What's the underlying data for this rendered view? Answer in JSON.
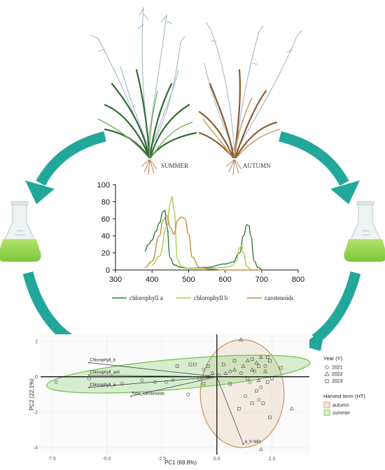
{
  "plants": {
    "summer_label": "SUMMER",
    "autumn_label": "AUTUMN"
  },
  "colors": {
    "arrow": "#22a89a",
    "chlorophyll_a": "#2e7d32",
    "chlorophyll_b": "#aacc55",
    "carotenoids": "#cc8a3a",
    "flask_liquid": "#8fd44a",
    "summer_ellipse": "#6cc24a",
    "autumn_ellipse": "#c9925a"
  },
  "spectrum": {
    "chart_data": {
      "type": "line",
      "xlim": [
        300,
        800
      ],
      "ylim": [
        0,
        100
      ],
      "xticks": [
        300,
        400,
        500,
        600,
        700,
        800
      ],
      "yticks": [
        0,
        20,
        40,
        60,
        80,
        100
      ],
      "series": [
        {
          "name": "chlorophyll a",
          "color": "#2e7d32",
          "x": [
            380,
            390,
            400,
            410,
            420,
            430,
            435,
            440,
            450,
            460,
            480,
            500,
            550,
            600,
            620,
            640,
            650,
            660,
            665,
            670,
            680,
            690,
            700
          ],
          "y": [
            22,
            30,
            35,
            45,
            55,
            68,
            70,
            52,
            14,
            6,
            3,
            2,
            3,
            7,
            9,
            20,
            40,
            53,
            52,
            40,
            10,
            3,
            1
          ]
        },
        {
          "name": "chlorophyll b",
          "color": "#aacc55",
          "x": [
            400,
            420,
            440,
            450,
            455,
            460,
            470,
            480,
            500,
            550,
            600,
            620,
            630,
            640,
            645,
            650,
            660,
            670
          ],
          "y": [
            6,
            16,
            50,
            78,
            86,
            70,
            12,
            4,
            2,
            2,
            3,
            5,
            10,
            26,
            28,
            20,
            4,
            1
          ]
        },
        {
          "name": "carotenoids",
          "color": "#cc8a3a",
          "x": [
            380,
            400,
            420,
            430,
            440,
            450,
            460,
            470,
            480,
            490,
            500,
            510,
            530,
            560,
            600,
            700
          ],
          "y": [
            3,
            10,
            40,
            58,
            64,
            50,
            42,
            58,
            62,
            60,
            42,
            15,
            3,
            1,
            0,
            0
          ]
        }
      ]
    }
  },
  "pca": {
    "chart_data": {
      "type": "scatter",
      "xlabel": "PC1 (69.8%)",
      "ylabel": "PC2 (22.1%)",
      "xlim": [
        -8,
        4.2
      ],
      "ylim": [
        -4.4,
        2.4
      ],
      "xticks": [
        -7.5,
        -5.0,
        -2.5,
        0.0,
        2.5
      ],
      "yticks": [
        2,
        0,
        -2,
        -4
      ],
      "legend_year_title": "Year (Y)",
      "legend_year": [
        {
          "symbol": "circle",
          "label": "2021"
        },
        {
          "symbol": "triangle",
          "label": "2022"
        },
        {
          "symbol": "square",
          "label": "2023"
        }
      ],
      "legend_ht_title": "Harvest term (HT)",
      "legend_ht": [
        {
          "label": "autumn",
          "color": "#c9925a"
        },
        {
          "label": "summer",
          "color": "#6cc24a"
        }
      ],
      "vectors": [
        {
          "label": "Chlorophyll_b",
          "x": -5.8,
          "y": 0.8
        },
        {
          "label": "Chlorophyll_ash",
          "x": -5.8,
          "y": 0.1
        },
        {
          "label": "Chlorophyll_a",
          "x": -5.8,
          "y": -0.6
        },
        {
          "label": "Total_carotenoids",
          "x": -3.9,
          "y": -1.1
        },
        {
          "label": "a_b ratio",
          "x": 1.2,
          "y": -3.8
        }
      ],
      "points": [
        {
          "s": "circle",
          "x": -7.3,
          "y": -0.3
        },
        {
          "s": "circle",
          "x": -5.8,
          "y": -0.1
        },
        {
          "s": "circle",
          "x": -4.3,
          "y": -0.4
        },
        {
          "s": "circle",
          "x": -3.4,
          "y": -0.2
        },
        {
          "s": "circle",
          "x": -2.8,
          "y": -0.3
        },
        {
          "s": "circle",
          "x": -2.3,
          "y": -0.3
        },
        {
          "s": "circle",
          "x": -1.3,
          "y": -1.0
        },
        {
          "s": "circle",
          "x": -0.8,
          "y": -0.1
        },
        {
          "s": "circle",
          "x": -0.6,
          "y": 0.4
        },
        {
          "s": "circle",
          "x": -0.4,
          "y": 0.0
        },
        {
          "s": "circle",
          "x": 0.1,
          "y": 0.1
        },
        {
          "s": "circle",
          "x": 0.6,
          "y": 0.3
        },
        {
          "s": "circle",
          "x": 1.1,
          "y": 0.2
        },
        {
          "s": "circle",
          "x": 1.5,
          "y": -0.3
        },
        {
          "s": "circle",
          "x": 2.0,
          "y": -0.6
        },
        {
          "s": "circle",
          "x": 1.7,
          "y": 0.3
        },
        {
          "s": "circle",
          "x": 1.3,
          "y": -1.1
        },
        {
          "s": "circle",
          "x": 2.2,
          "y": 0.6
        },
        {
          "s": "circle",
          "x": -2.0,
          "y": -0.2
        },
        {
          "s": "circle",
          "x": 1.9,
          "y": -1.3
        },
        {
          "s": "triangle",
          "x": 1.1,
          "y": 2.1
        },
        {
          "s": "triangle",
          "x": 1.4,
          "y": 0.9
        },
        {
          "s": "triangle",
          "x": 1.8,
          "y": 0.8
        },
        {
          "s": "triangle",
          "x": 2.0,
          "y": 1.1
        },
        {
          "s": "triangle",
          "x": 1.2,
          "y": 0.6
        },
        {
          "s": "triangle",
          "x": 0.8,
          "y": 0.4
        },
        {
          "s": "triangle",
          "x": 0.4,
          "y": 0.2
        },
        {
          "s": "triangle",
          "x": 1.6,
          "y": 0.4
        },
        {
          "s": "triangle",
          "x": 2.2,
          "y": 0.3
        },
        {
          "s": "triangle",
          "x": 1.9,
          "y": -0.2
        },
        {
          "s": "triangle",
          "x": 3.4,
          "y": -1.8
        },
        {
          "s": "triangle",
          "x": 2.0,
          "y": -4.1
        },
        {
          "s": "triangle",
          "x": -0.2,
          "y": 0.2
        },
        {
          "s": "square",
          "x": -1.8,
          "y": 0.6
        },
        {
          "s": "square",
          "x": -1.2,
          "y": 0.7
        },
        {
          "s": "square",
          "x": -1.0,
          "y": 0.7
        },
        {
          "s": "square",
          "x": -0.4,
          "y": 0.6
        },
        {
          "s": "square",
          "x": 0.3,
          "y": 0.7
        },
        {
          "s": "square",
          "x": 0.8,
          "y": 0.9
        },
        {
          "s": "square",
          "x": 1.6,
          "y": 1.0
        },
        {
          "s": "square",
          "x": 2.3,
          "y": 1.1
        },
        {
          "s": "square",
          "x": 2.4,
          "y": 0.9
        },
        {
          "s": "square",
          "x": 1.9,
          "y": 0.6
        },
        {
          "s": "square",
          "x": 1.4,
          "y": -0.1
        },
        {
          "s": "square",
          "x": 2.3,
          "y": -0.3
        },
        {
          "s": "square",
          "x": 1.8,
          "y": -0.8
        },
        {
          "s": "square",
          "x": 1.6,
          "y": -1.5
        },
        {
          "s": "square",
          "x": 2.1,
          "y": -1.5
        },
        {
          "s": "square",
          "x": 2.4,
          "y": -2.3
        },
        {
          "s": "square",
          "x": 1.0,
          "y": -1.8
        },
        {
          "s": "square",
          "x": 2.9,
          "y": 0.5
        },
        {
          "s": "square",
          "x": 0.6,
          "y": -0.4
        },
        {
          "s": "square",
          "x": -0.6,
          "y": -0.4
        },
        {
          "s": "square",
          "x": 2.5,
          "y": -0.1
        }
      ]
    }
  }
}
